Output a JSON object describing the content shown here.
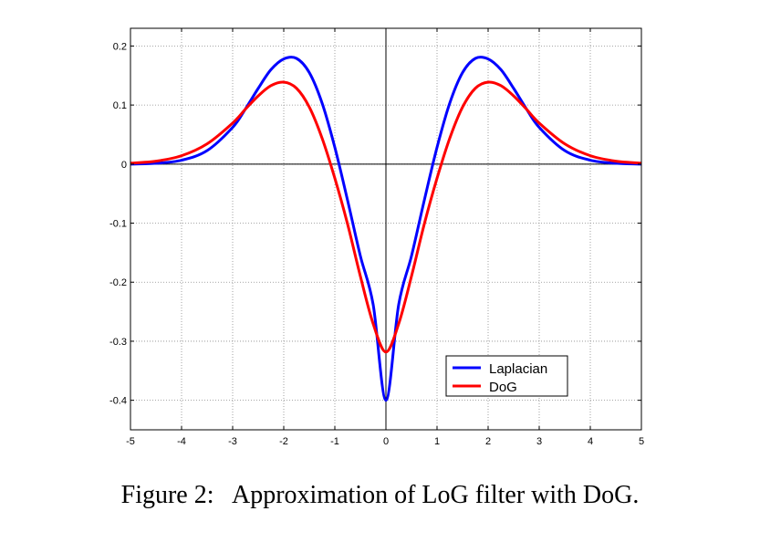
{
  "caption": {
    "label": "Figure 2:",
    "text": "Approximation of LoG filter with DoG."
  },
  "chart_data": {
    "type": "line",
    "title": "",
    "xlabel": "",
    "ylabel": "",
    "xlim": [
      -5,
      5
    ],
    "ylim": [
      -0.45,
      0.23
    ],
    "xticks": [
      -5,
      -4,
      -3,
      -2,
      -1,
      0,
      1,
      2,
      3,
      4,
      5
    ],
    "xtick_labels": [
      "-5",
      "-4",
      "-3",
      "-2",
      "-1",
      "0",
      "1",
      "2",
      "3",
      "4",
      "5"
    ],
    "yticks": [
      0.2,
      0.1,
      0,
      -0.1,
      -0.2,
      -0.3,
      -0.4
    ],
    "ytick_labels": [
      "0.2",
      "0.1",
      "0",
      "-0.1",
      "-0.2",
      "-0.3",
      "-0.4"
    ],
    "grid": true,
    "legend": {
      "placement": "lower-right"
    },
    "x": [
      -5,
      -4.5,
      -4,
      -3.5,
      -3,
      -2.75,
      -2.5,
      -2.25,
      -2,
      -1.75,
      -1.5,
      -1.25,
      -1,
      -0.75,
      -0.5,
      -0.25,
      0,
      0.25,
      0.5,
      0.75,
      1,
      1.25,
      1.5,
      1.75,
      2,
      2.25,
      2.5,
      2.75,
      3,
      3.5,
      4,
      4.5,
      5
    ],
    "series": [
      {
        "name": "Laplacian",
        "color": "#0000ff",
        "values": [
          -0.0001,
          0.0014,
          0.0066,
          0.0229,
          0.0622,
          0.0934,
          0.1282,
          0.16,
          0.1781,
          0.179,
          0.155,
          0.1034,
          0.0283,
          -0.0616,
          -0.1557,
          -0.2378,
          -0.4,
          -0.2378,
          -0.1557,
          -0.0616,
          0.0283,
          0.1034,
          0.155,
          0.179,
          0.1781,
          0.16,
          0.1282,
          0.0934,
          0.0622,
          0.0229,
          0.0066,
          0.0014,
          -0.0001
        ]
      },
      {
        "name": "DoG",
        "color": "#ff0000",
        "values": [
          0.0016,
          0.005,
          0.0142,
          0.0343,
          0.0695,
          0.093,
          0.1155,
          0.1329,
          0.1388,
          0.1284,
          0.0966,
          0.044,
          -0.024,
          -0.1018,
          -0.19,
          -0.2703,
          -0.3183,
          -0.2703,
          -0.19,
          -0.1018,
          -0.024,
          0.044,
          0.0966,
          0.1284,
          0.1388,
          0.1329,
          0.1155,
          0.093,
          0.0695,
          0.0343,
          0.0142,
          0.005,
          0.0016
        ]
      }
    ]
  }
}
